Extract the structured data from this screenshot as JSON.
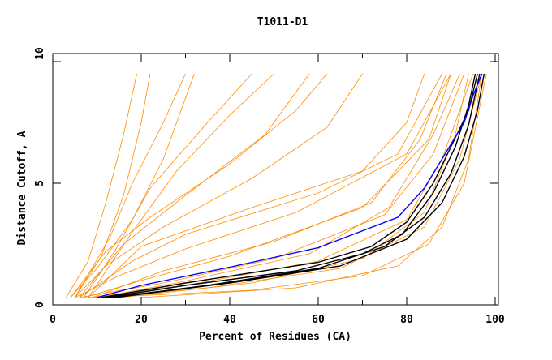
{
  "chart_data": {
    "type": "line",
    "title": "T1011-D1",
    "xlabel": "Percent of Residues (CA)",
    "ylabel": "Distance Cutoff, A",
    "xlim": [
      0,
      100
    ],
    "ylim": [
      0,
      10
    ],
    "xticks": [
      "0",
      "20",
      "40",
      "60",
      "80",
      "100"
    ],
    "yticks": [
      "0",
      "5",
      "10"
    ],
    "grid": false,
    "colors": {
      "models": "#ff8c00",
      "highlight": "#0000ff",
      "reference": "#000000"
    },
    "series": [
      {
        "color": "#0000ff",
        "points": [
          [
            10,
            0.3
          ],
          [
            20,
            0.8
          ],
          [
            40,
            1.55
          ],
          [
            60,
            2.35
          ],
          [
            78,
            3.6
          ],
          [
            84,
            4.8
          ],
          [
            89,
            6.3
          ],
          [
            93,
            7.5
          ],
          [
            95,
            8.6
          ],
          [
            97,
            9.5
          ]
        ]
      },
      {
        "color": "#000000",
        "points": [
          [
            11,
            0.3
          ],
          [
            30,
            0.9
          ],
          [
            60,
            1.75
          ],
          [
            72,
            2.4
          ],
          [
            80,
            3.4
          ],
          [
            86,
            5
          ],
          [
            90,
            6.5
          ],
          [
            94,
            8
          ],
          [
            96,
            9.5
          ]
        ]
      },
      {
        "color": "#000000",
        "points": [
          [
            12,
            0.3
          ],
          [
            30,
            0.8
          ],
          [
            55,
            1.4
          ],
          [
            70,
            2.1
          ],
          [
            79,
            2.9
          ],
          [
            86,
            4.6
          ],
          [
            91,
            6.5
          ],
          [
            94,
            8.2
          ],
          [
            95.5,
            9.5
          ]
        ]
      },
      {
        "color": "#000000",
        "points": [
          [
            13,
            0.3
          ],
          [
            35,
            0.8
          ],
          [
            60,
            1.5
          ],
          [
            75,
            2.4
          ],
          [
            84,
            3.6
          ],
          [
            90,
            5.4
          ],
          [
            94,
            7.4
          ],
          [
            96.5,
            9.5
          ]
        ]
      },
      {
        "color": "#000000",
        "points": [
          [
            14,
            0.3
          ],
          [
            40,
            0.9
          ],
          [
            65,
            1.6
          ],
          [
            80,
            2.7
          ],
          [
            88,
            4.2
          ],
          [
            93,
            6.1
          ],
          [
            96,
            8
          ],
          [
            97.5,
            9.5
          ]
        ]
      },
      {
        "color": "#ff8c00",
        "points": [
          [
            8,
            0.3
          ],
          [
            30,
            0.8
          ],
          [
            60,
            1.8
          ],
          [
            80,
            3.5
          ],
          [
            88,
            6
          ],
          [
            95,
            9.5
          ]
        ]
      },
      {
        "color": "#ff8c00",
        "points": [
          [
            6,
            0.3
          ],
          [
            25,
            0.9
          ],
          [
            50,
            1.9
          ],
          [
            75,
            3.7
          ],
          [
            86,
            6.2
          ],
          [
            93,
            9.5
          ]
        ]
      },
      {
        "color": "#ff8c00",
        "points": [
          [
            9,
            0.3
          ],
          [
            35,
            0.7
          ],
          [
            65,
            1.5
          ],
          [
            84,
            3.2
          ],
          [
            92,
            6
          ],
          [
            97,
            9.5
          ]
        ]
      },
      {
        "color": "#ff8c00",
        "points": [
          [
            7,
            0.3
          ],
          [
            20,
            1.0
          ],
          [
            40,
            2.0
          ],
          [
            70,
            4.0
          ],
          [
            85,
            6.8
          ],
          [
            90,
            9.5
          ]
        ]
      },
      {
        "color": "#ff8c00",
        "points": [
          [
            10,
            0.3
          ],
          [
            45,
            0.6
          ],
          [
            70,
            1.2
          ],
          [
            85,
            2.5
          ],
          [
            93,
            5
          ],
          [
            98,
            9.5
          ]
        ]
      },
      {
        "color": "#ff8c00",
        "points": [
          [
            20,
            0.3
          ],
          [
            55,
            0.7
          ],
          [
            78,
            1.6
          ],
          [
            88,
            3.2
          ],
          [
            94,
            6
          ],
          [
            97,
            9.5
          ]
        ]
      },
      {
        "color": "#ff8c00",
        "points": [
          [
            5,
            0.3
          ],
          [
            15,
            1.2
          ],
          [
            30,
            2.3
          ],
          [
            55,
            3.8
          ],
          [
            80,
            6.2
          ],
          [
            90,
            9.5
          ]
        ]
      },
      {
        "color": "#ff8c00",
        "points": [
          [
            6,
            0.3
          ],
          [
            18,
            1.8
          ],
          [
            30,
            2.9
          ],
          [
            60,
            4.6
          ],
          [
            78,
            6.2
          ],
          [
            88,
            9.5
          ]
        ]
      },
      {
        "color": "#ff8c00",
        "points": [
          [
            5,
            0.3
          ],
          [
            12,
            1.6
          ],
          [
            25,
            3.2
          ],
          [
            45,
            5.2
          ],
          [
            62,
            7.3
          ],
          [
            70,
            9.5
          ]
        ]
      },
      {
        "color": "#ff8c00",
        "points": [
          [
            4,
            0.3
          ],
          [
            10,
            1.5
          ],
          [
            18,
            3.5
          ],
          [
            25,
            6
          ],
          [
            32,
            9.5
          ]
        ]
      },
      {
        "color": "#ff8c00",
        "points": [
          [
            3,
            0.3
          ],
          [
            8,
            1.8
          ],
          [
            12,
            4.2
          ],
          [
            16,
            7
          ],
          [
            19,
            9.5
          ]
        ]
      },
      {
        "color": "#ff8c00",
        "points": [
          [
            5,
            0.3
          ],
          [
            11,
            2.0
          ],
          [
            16,
            4.5
          ],
          [
            20,
            7.5
          ],
          [
            22,
            9.5
          ]
        ]
      },
      {
        "color": "#ff8c00",
        "points": [
          [
            7,
            0.3
          ],
          [
            14,
            2.2
          ],
          [
            22,
            4.8
          ],
          [
            35,
            7.5
          ],
          [
            45,
            9.5
          ]
        ]
      },
      {
        "color": "#ff8c00",
        "points": [
          [
            6,
            0.3
          ],
          [
            16,
            2.5
          ],
          [
            30,
            4.5
          ],
          [
            48,
            7
          ],
          [
            58,
            9.5
          ]
        ]
      },
      {
        "color": "#ff8c00",
        "points": [
          [
            8,
            0.3
          ],
          [
            20,
            2.4
          ],
          [
            45,
            4
          ],
          [
            70,
            5.5
          ],
          [
            80,
            7.5
          ],
          [
            84,
            9.5
          ]
        ]
      },
      {
        "color": "#ff8c00",
        "points": [
          [
            9,
            0.3
          ],
          [
            25,
            1.4
          ],
          [
            50,
            2.6
          ],
          [
            72,
            4.2
          ],
          [
            83,
            6.8
          ],
          [
            89,
            9.5
          ]
        ]
      },
      {
        "color": "#ff8c00",
        "points": [
          [
            5,
            0.3
          ],
          [
            13,
            2.8
          ],
          [
            18,
            5
          ],
          [
            25,
            7.5
          ],
          [
            30,
            9.5
          ]
        ]
      },
      {
        "color": "#ff8c00",
        "points": [
          [
            8,
            0.3
          ],
          [
            18,
            3
          ],
          [
            28,
            5.5
          ],
          [
            40,
            7.8
          ],
          [
            50,
            9.5
          ]
        ]
      },
      {
        "color": "#ff8c00",
        "points": [
          [
            10,
            0.3
          ],
          [
            28,
            0.9
          ],
          [
            58,
            2.1
          ],
          [
            76,
            4.0
          ],
          [
            86,
            7
          ],
          [
            92,
            9.5
          ]
        ]
      },
      {
        "color": "#ff8c00",
        "points": [
          [
            15,
            0.3
          ],
          [
            45,
            0.9
          ],
          [
            70,
            1.9
          ],
          [
            84,
            3.8
          ],
          [
            91,
            7
          ],
          [
            94,
            9.5
          ]
        ]
      },
      {
        "color": "#ff8c00",
        "points": [
          [
            4,
            0.3
          ],
          [
            12,
            2.2
          ],
          [
            22,
            3.6
          ],
          [
            40,
            5.8
          ],
          [
            55,
            8
          ],
          [
            62,
            9.5
          ]
        ]
      }
    ]
  }
}
